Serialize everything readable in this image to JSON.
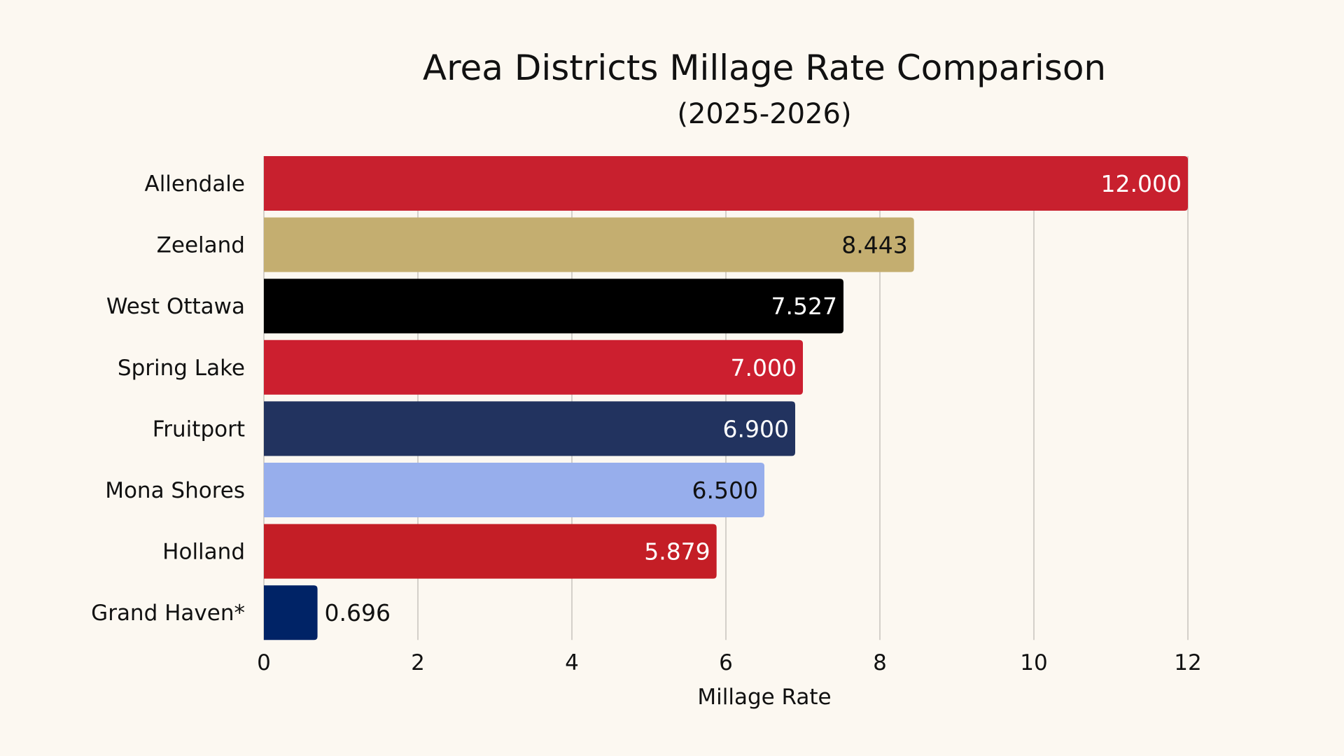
{
  "chart_data": {
    "type": "bar",
    "orientation": "horizontal",
    "title": "Area Districts Millage Rate Comparison",
    "subtitle": "(2025-2026)",
    "xlabel": "Millage Rate",
    "ylabel": "",
    "xlim": [
      0,
      12
    ],
    "xticks": [
      0,
      2,
      4,
      6,
      8,
      10,
      12
    ],
    "xtick_labels": [
      "0",
      "2",
      "4",
      "6",
      "8",
      "10",
      "12"
    ],
    "grid": true,
    "legend": "none",
    "categories": [
      "Allendale",
      "Zeeland",
      "West Ottawa",
      "Spring Lake",
      "Fruitport",
      "Mona Shores",
      "Holland",
      "Grand Haven*"
    ],
    "values": [
      12.0,
      8.443,
      7.527,
      7.0,
      6.9,
      6.5,
      5.879,
      0.696
    ],
    "value_labels": [
      "12.000",
      "8.443",
      "7.527",
      "7.000",
      "6.900",
      "6.500",
      "5.879",
      "0.696"
    ],
    "bar_colors": [
      "#c8202e",
      "#c4ae70",
      "#000000",
      "#cc1f2f",
      "#22335f",
      "#97aeec",
      "#c41e26",
      "#002366"
    ],
    "label_colors": [
      "#ffffff",
      "#111111",
      "#ffffff",
      "#ffffff",
      "#ffffff",
      "#111111",
      "#ffffff",
      "#111111"
    ],
    "label_position": [
      "inside",
      "inside",
      "inside",
      "inside",
      "inside",
      "inside",
      "inside",
      "outside"
    ]
  }
}
